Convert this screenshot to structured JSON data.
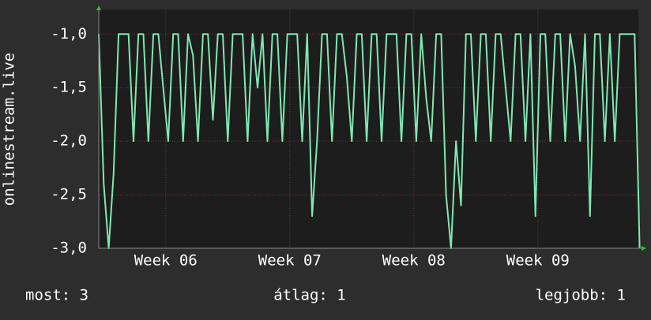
{
  "chart_data": {
    "type": "line",
    "y_label": "onlinestream.live",
    "ylim": [
      -3.0,
      -0.77
    ],
    "yticks": [
      {
        "value": -1.0,
        "label": "-1,0"
      },
      {
        "value": -1.5,
        "label": "-1,5"
      },
      {
        "value": -2.0,
        "label": "-2,0"
      },
      {
        "value": -2.5,
        "label": "-2,5"
      },
      {
        "value": -3.0,
        "label": "-3,0"
      }
    ],
    "xlim": [
      5.46,
      9.81
    ],
    "xticks": [
      {
        "value": 6,
        "label": "Week 06"
      },
      {
        "value": 7,
        "label": "Week 07"
      },
      {
        "value": 8,
        "label": "Week 08"
      },
      {
        "value": 9,
        "label": "Week 09"
      }
    ],
    "grid": true,
    "x": [
      5.46,
      5.5,
      5.54,
      5.58,
      5.62,
      5.66,
      5.7,
      5.74,
      5.78,
      5.82,
      5.86,
      5.9,
      5.94,
      5.98,
      6.02,
      6.06,
      6.1,
      6.14,
      6.18,
      6.22,
      6.26,
      6.3,
      6.34,
      6.38,
      6.42,
      6.46,
      6.5,
      6.54,
      6.58,
      6.62,
      6.66,
      6.7,
      6.74,
      6.78,
      6.82,
      6.86,
      6.9,
      6.94,
      6.98,
      7.02,
      7.06,
      7.1,
      7.14,
      7.18,
      7.22,
      7.26,
      7.3,
      7.34,
      7.38,
      7.42,
      7.46,
      7.5,
      7.54,
      7.58,
      7.62,
      7.66,
      7.7,
      7.74,
      7.78,
      7.82,
      7.86,
      7.9,
      7.94,
      7.98,
      8.02,
      8.06,
      8.1,
      8.14,
      8.18,
      8.22,
      8.26,
      8.3,
      8.34,
      8.38,
      8.42,
      8.46,
      8.5,
      8.54,
      8.58,
      8.62,
      8.66,
      8.7,
      8.74,
      8.78,
      8.82,
      8.86,
      8.9,
      8.94,
      8.98,
      9.02,
      9.06,
      9.1,
      9.14,
      9.18,
      9.22,
      9.26,
      9.3,
      9.34,
      9.38,
      9.42,
      9.46,
      9.5,
      9.54,
      9.58,
      9.62,
      9.66,
      9.7,
      9.74,
      9.78,
      9.82
    ],
    "series": [
      {
        "color": "#7fe8b2",
        "values": [
          -1,
          -2.4,
          -3,
          -2.3,
          -1,
          -1,
          -1,
          -2,
          -1,
          -1,
          -2,
          -1,
          -1,
          -1.5,
          -2,
          -1,
          -1,
          -2,
          -1,
          -1.2,
          -2,
          -1,
          -1,
          -1.8,
          -1,
          -1,
          -2,
          -1,
          -1,
          -1,
          -2,
          -1,
          -1.5,
          -1,
          -2,
          -1,
          -1,
          -2,
          -1,
          -1,
          -1,
          -2,
          -1,
          -2.7,
          -2,
          -1,
          -1,
          -2,
          -1,
          -1,
          -1.4,
          -2,
          -1,
          -1,
          -2,
          -1,
          -1,
          -2,
          -1,
          -1,
          -1,
          -2,
          -1,
          -1,
          -2,
          -1,
          -1.6,
          -2,
          -1,
          -1,
          -2.5,
          -3,
          -2,
          -2.6,
          -1,
          -1,
          -2,
          -1,
          -1,
          -2,
          -1,
          -1,
          -1.5,
          -2,
          -1,
          -1,
          -2,
          -1,
          -2.7,
          -1,
          -1,
          -2,
          -1,
          -1,
          -2,
          -1,
          -1.3,
          -2,
          -1,
          -2.7,
          -1,
          -1,
          -2,
          -1,
          -2,
          -1,
          -1,
          -1,
          -1,
          -3
        ]
      }
    ],
    "footer": [
      "most: 3",
      "átlag: 1",
      "legjobb: 1"
    ]
  }
}
